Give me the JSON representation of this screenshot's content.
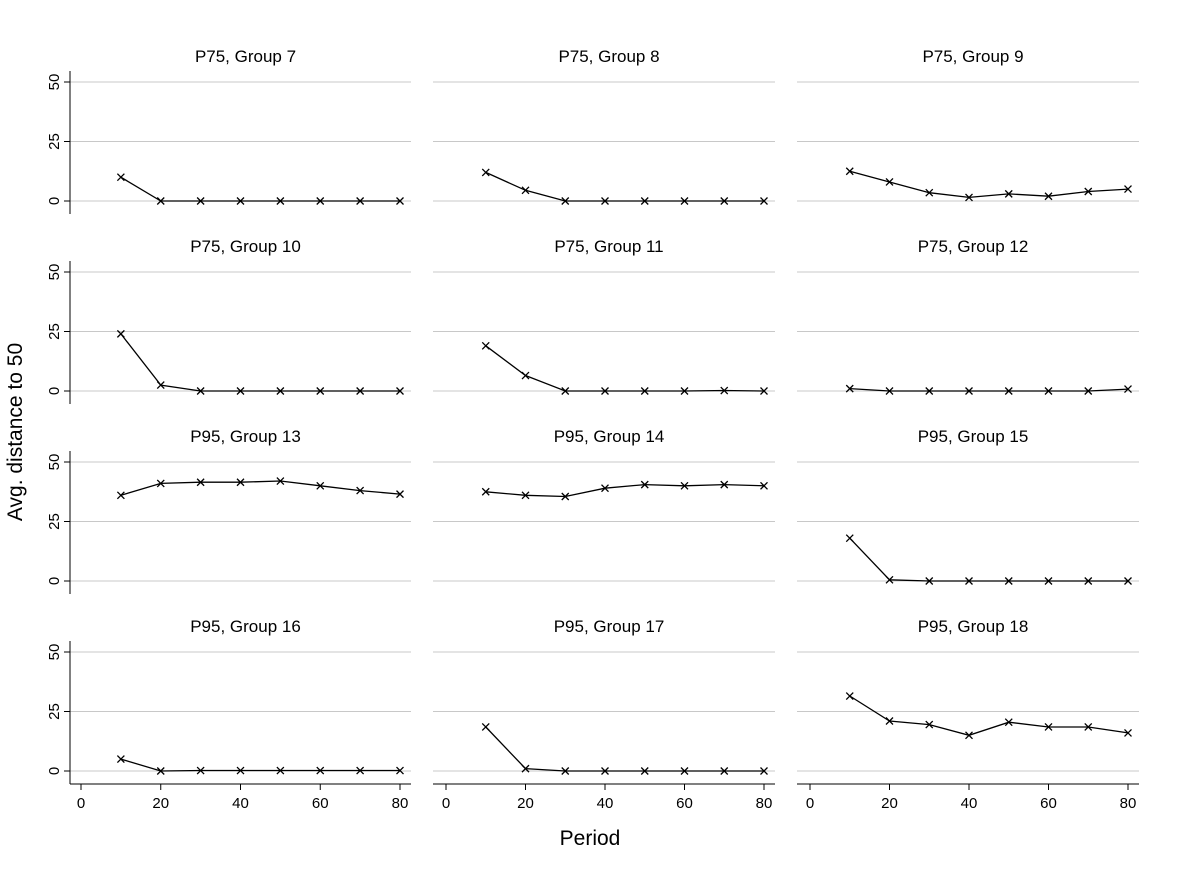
{
  "chart_data": {
    "type": "line",
    "layout": "3 columns x 4 rows small multiples",
    "xlabel": "Period",
    "ylabel": "Avg. distance to 50",
    "x": [
      10,
      20,
      30,
      40,
      50,
      60,
      70,
      80
    ],
    "xlim": [
      0,
      80
    ],
    "ylim": [
      0,
      50
    ],
    "x_ticks": [
      "0",
      "20",
      "40",
      "60",
      "80"
    ],
    "y_ticks": [
      "0",
      "25",
      "50"
    ],
    "grid": "horizontal",
    "marker": "x",
    "line_color": "#000000",
    "panels": [
      {
        "title": "P75, Group 7",
        "values": [
          10,
          0,
          0,
          0,
          0,
          0,
          0,
          0
        ]
      },
      {
        "title": "P75, Group 8",
        "values": [
          12,
          4.5,
          0,
          0,
          0,
          0,
          0,
          0
        ]
      },
      {
        "title": "P75, Group 9",
        "values": [
          12.5,
          8,
          3.5,
          1.5,
          3,
          2,
          4,
          5
        ]
      },
      {
        "title": "P75, Group 10",
        "values": [
          24,
          2.5,
          0,
          0,
          0,
          0,
          0,
          0
        ]
      },
      {
        "title": "P75, Group 11",
        "values": [
          19,
          6.5,
          0,
          0,
          0,
          0,
          0.2,
          0
        ]
      },
      {
        "title": "P75, Group 12",
        "values": [
          1,
          0,
          0,
          0,
          0,
          0,
          0,
          0.8
        ]
      },
      {
        "title": "P95, Group 13",
        "values": [
          36,
          41,
          41.5,
          41.5,
          42,
          40,
          38,
          36.5
        ]
      },
      {
        "title": "P95, Group 14",
        "values": [
          37.5,
          36,
          35.5,
          39,
          40.5,
          40,
          40.5,
          40
        ]
      },
      {
        "title": "P95, Group 15",
        "values": [
          18,
          0.5,
          0,
          0,
          0,
          0,
          0,
          0
        ]
      },
      {
        "title": "P95, Group 16",
        "values": [
          5,
          0,
          0.2,
          0.2,
          0.2,
          0.2,
          0.2,
          0.2
        ]
      },
      {
        "title": "P95, Group 17",
        "values": [
          18.5,
          1,
          0,
          0,
          0,
          0,
          0,
          0
        ]
      },
      {
        "title": "P95, Group 18",
        "values": [
          31.5,
          21,
          19.5,
          15,
          20.5,
          18.5,
          18.5,
          16
        ]
      }
    ]
  }
}
